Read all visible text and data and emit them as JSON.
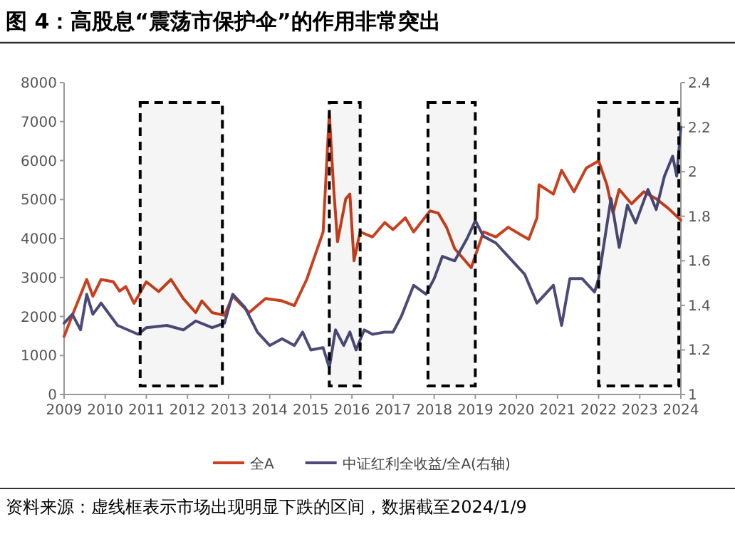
{
  "chart_data": {
    "type": "line",
    "title": "图 4：高股息“震荡市保护伞”的作用非常突出",
    "annotations": [
      "资料来源：虚线框表示市场出现明显下跌的区间，数据截至2024/1/9"
    ],
    "xlim": [
      2009,
      2024
    ],
    "xticks": [
      2009,
      2010,
      2011,
      2012,
      2013,
      2014,
      2015,
      2016,
      2017,
      2018,
      2019,
      2020,
      2021,
      2022,
      2023,
      2024
    ],
    "ylim": [
      0,
      8000
    ],
    "yticks": [
      0,
      1000,
      2000,
      3000,
      4000,
      5000,
      6000,
      7000,
      8000
    ],
    "y2lim": [
      1,
      2.4
    ],
    "y2ticks": [
      {
        "value": 1,
        "label": "1"
      },
      {
        "value": 1.2,
        "label": "1.2"
      },
      {
        "value": 1.4,
        "label": "1.4"
      },
      {
        "value": 1.6,
        "label": "1.6"
      },
      {
        "value": 1.8,
        "label": "1.8"
      },
      {
        "value": 2,
        "label": "2"
      },
      {
        "value": 2.2,
        "label": "2.2"
      },
      {
        "value": 2.4,
        "label": "2.4"
      }
    ],
    "grid": false,
    "legend": "bottom",
    "line_style": "solid",
    "marker": "none",
    "bands": [
      {
        "axis": "x",
        "from": 2010.85,
        "to": 2012.85,
        "color": "#000000"
      },
      {
        "axis": "x",
        "from": 2015.45,
        "to": 2016.2,
        "color": "#000000"
      },
      {
        "axis": "x",
        "from": 2017.85,
        "to": 2019.0,
        "color": "#000000"
      },
      {
        "axis": "x",
        "from": 2022.0,
        "to": 2023.95,
        "color": "#000000"
      }
    ],
    "series": [
      {
        "name": "全A",
        "color": "#c8401e",
        "x": [
          2009.0,
          2009.2,
          2009.55,
          2009.7,
          2009.9,
          2010.2,
          2010.35,
          2010.5,
          2010.7,
          2011.0,
          2011.3,
          2011.6,
          2011.9,
          2012.2,
          2012.35,
          2012.6,
          2012.9,
          2013.1,
          2013.5,
          2013.9,
          2014.3,
          2014.6,
          2014.9,
          2015.1,
          2015.3,
          2015.45,
          2015.55,
          2015.65,
          2015.85,
          2015.95,
          2016.05,
          2016.2,
          2016.5,
          2016.8,
          2017.0,
          2017.3,
          2017.5,
          2017.9,
          2018.1,
          2018.3,
          2018.5,
          2018.9,
          2019.2,
          2019.5,
          2019.8,
          2020.1,
          2020.3,
          2020.5,
          2020.55,
          2020.9,
          2021.1,
          2021.4,
          2021.7,
          2022.0,
          2022.2,
          2022.35,
          2022.5,
          2022.8,
          2023.1,
          2023.4,
          2023.7,
          2024.0
        ],
        "values": [
          1490,
          2030,
          2950,
          2520,
          2950,
          2890,
          2650,
          2770,
          2340,
          2890,
          2640,
          2950,
          2460,
          2100,
          2400,
          2100,
          2030,
          2520,
          2100,
          2460,
          2400,
          2280,
          2950,
          3560,
          4170,
          7210,
          5380,
          3920,
          5020,
          5140,
          3430,
          4170,
          4040,
          4410,
          4230,
          4530,
          4170,
          4710,
          4650,
          4290,
          3740,
          3250,
          4170,
          4040,
          4290,
          4100,
          3980,
          4530,
          5380,
          5140,
          5750,
          5200,
          5810,
          5990,
          5380,
          4650,
          5260,
          4890,
          5200,
          5020,
          4770,
          4470
        ]
      },
      {
        "name": "中证红利全收益/全A(右轴)",
        "color": "#4b4a78",
        "axis": "y2",
        "x": [
          2009.0,
          2009.2,
          2009.4,
          2009.55,
          2009.7,
          2009.9,
          2010.3,
          2010.8,
          2011.0,
          2011.5,
          2011.9,
          2012.2,
          2012.6,
          2012.9,
          2013.1,
          2013.4,
          2013.7,
          2014.0,
          2014.3,
          2014.6,
          2014.8,
          2015.0,
          2015.3,
          2015.45,
          2015.6,
          2015.8,
          2015.95,
          2016.1,
          2016.3,
          2016.5,
          2016.8,
          2017.0,
          2017.2,
          2017.5,
          2017.8,
          2018.0,
          2018.2,
          2018.5,
          2018.8,
          2019.0,
          2019.2,
          2019.5,
          2019.8,
          2020.2,
          2020.5,
          2020.9,
          2021.1,
          2021.3,
          2021.6,
          2021.9,
          2022.0,
          2022.3,
          2022.5,
          2022.7,
          2022.9,
          2023.2,
          2023.4,
          2023.6,
          2023.8,
          2023.9,
          2024.0
        ],
        "values": [
          1.32,
          1.36,
          1.29,
          1.45,
          1.36,
          1.41,
          1.31,
          1.27,
          1.3,
          1.31,
          1.29,
          1.33,
          1.3,
          1.32,
          1.45,
          1.39,
          1.28,
          1.22,
          1.25,
          1.22,
          1.28,
          1.2,
          1.21,
          1.12,
          1.29,
          1.22,
          1.28,
          1.2,
          1.29,
          1.27,
          1.28,
          1.28,
          1.35,
          1.49,
          1.45,
          1.52,
          1.62,
          1.6,
          1.7,
          1.78,
          1.71,
          1.68,
          1.62,
          1.54,
          1.41,
          1.49,
          1.31,
          1.52,
          1.52,
          1.46,
          1.52,
          1.88,
          1.66,
          1.85,
          1.77,
          1.92,
          1.83,
          1.98,
          2.07,
          1.98,
          2.2
        ]
      }
    ]
  }
}
